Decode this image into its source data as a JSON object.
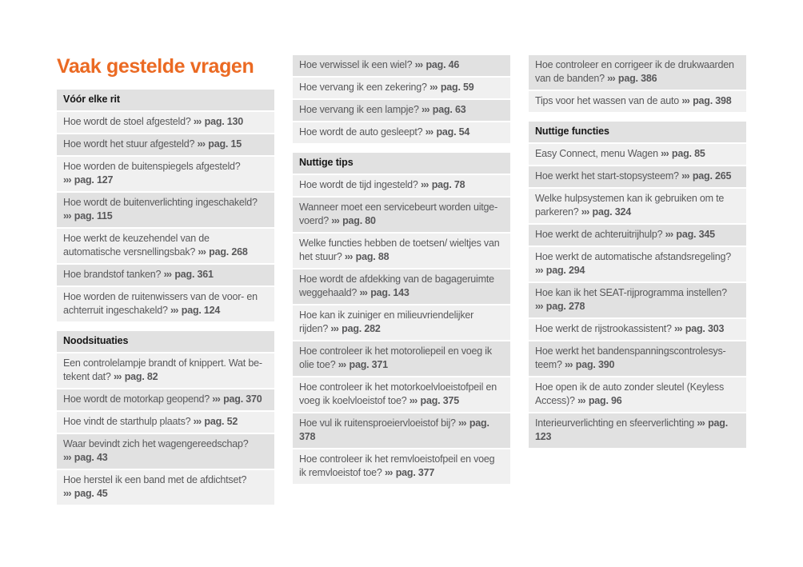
{
  "page": {
    "title": "Vaak gestelde vragen",
    "accent_color": "#EB6A23",
    "arrow_glyph": "›››",
    "page_ref_label": "pag."
  },
  "columns": [
    {
      "blocks": [
        {
          "header": "Vóór elke rit",
          "items": [
            {
              "question": "Hoe wordt de stoel afgesteld?",
              "page": "130"
            },
            {
              "question": "Hoe wordt het stuur afgesteld?",
              "page": "15"
            },
            {
              "question": "Hoe worden de buitenspiegels afgesteld?",
              "page": "127"
            },
            {
              "question": "Hoe wordt de buitenverlichting ingeschakeld?",
              "page": "115"
            },
            {
              "question": "Hoe werkt de keuzehendel van de automatische versnellingsbak?",
              "page": "268"
            },
            {
              "question": "Hoe brandstof tanken?",
              "page": "361"
            },
            {
              "question": "Hoe worden de ruitenwissers van de voor- en achterruit ingeschakeld?",
              "page": "124"
            }
          ]
        },
        {
          "header": "Noodsituaties",
          "items": [
            {
              "question": "Een controlelampje brandt of knippert. Wat be­tekent dat?",
              "page": "82"
            },
            {
              "question": "Hoe wordt de motorkap geopend?",
              "page": "370"
            },
            {
              "question": "Hoe vindt de starthulp plaats?",
              "page": "52"
            },
            {
              "question": "Waar bevindt zich het wagengereedschap?",
              "page": "43"
            },
            {
              "question": "Hoe herstel ik een band met de afdichtset?",
              "page": "45"
            }
          ]
        }
      ]
    },
    {
      "blocks": [
        {
          "header": "",
          "items": [
            {
              "question": "Hoe verwissel ik een wiel?",
              "page": "46"
            },
            {
              "question": "Hoe vervang ik een zekering?",
              "page": "59"
            },
            {
              "question": "Hoe vervang ik een lampje?",
              "page": "63"
            },
            {
              "question": "Hoe wordt de auto gesleept?",
              "page": "54"
            }
          ]
        },
        {
          "header": "Nuttige tips",
          "items": [
            {
              "question": "Hoe wordt de tijd ingesteld?",
              "page": "78"
            },
            {
              "question": "Wanneer moet een servicebeurt worden uitge­voerd?",
              "page": "80"
            },
            {
              "question": "Welke functies hebben de toetsen/ wieltjes van het stuur?",
              "page": "88"
            },
            {
              "question": "Hoe wordt de afdekking van de bagageruimte weggehaald?",
              "page": "143"
            },
            {
              "question": "Hoe kan ik zuiniger en milieuvriendelijker rijden?",
              "page": "282"
            },
            {
              "question": "Hoe controleer ik het motoroliepeil en voeg ik olie toe?",
              "page": "371"
            },
            {
              "question": "Hoe controleer ik het motorkoelvloeistofpeil en voeg ik koelvloeistof toe?",
              "page": "375"
            },
            {
              "question": "Hoe vul ik ruitensproeiervloeistof bij?",
              "page": "378"
            },
            {
              "question": "Hoe controleer ik het remvloeistofpeil en voeg ik remvloeistof toe?",
              "page": "377"
            }
          ]
        }
      ]
    },
    {
      "blocks": [
        {
          "header": "",
          "items": [
            {
              "question": "Hoe controleer en corrigeer ik de drukwaarden van de banden?",
              "page": "386"
            },
            {
              "question": "Tips voor het wassen van de auto",
              "page": "398"
            }
          ]
        },
        {
          "header": "Nuttige functies",
          "items": [
            {
              "question": "Easy Connect, menu Wagen",
              "page": "85"
            },
            {
              "question": "Hoe werkt het start-stopsysteem?",
              "page": "265"
            },
            {
              "question": "Welke hulpsystemen kan ik gebruiken om te par­keren?",
              "page": "324"
            },
            {
              "question": "Hoe werkt de achteruitrijhulp?",
              "page": "345"
            },
            {
              "question": "Hoe werkt de automatische afstandsregeling?",
              "page": "294"
            },
            {
              "question": "Hoe kan ik het SEAT-rijprogramma instellen?",
              "page": "278"
            },
            {
              "question": "Hoe werkt de rijstrookassistent?",
              "page": "303"
            },
            {
              "question": "Hoe werkt het bandenspanningscontrolesys­teem?",
              "page": "390"
            },
            {
              "question": "Hoe open ik de auto zonder sleutel (Keyless Ac­cess)?",
              "page": "96"
            },
            {
              "question": "Interieurverlichting en sfeerverlichting",
              "page": "123"
            }
          ]
        }
      ]
    }
  ]
}
